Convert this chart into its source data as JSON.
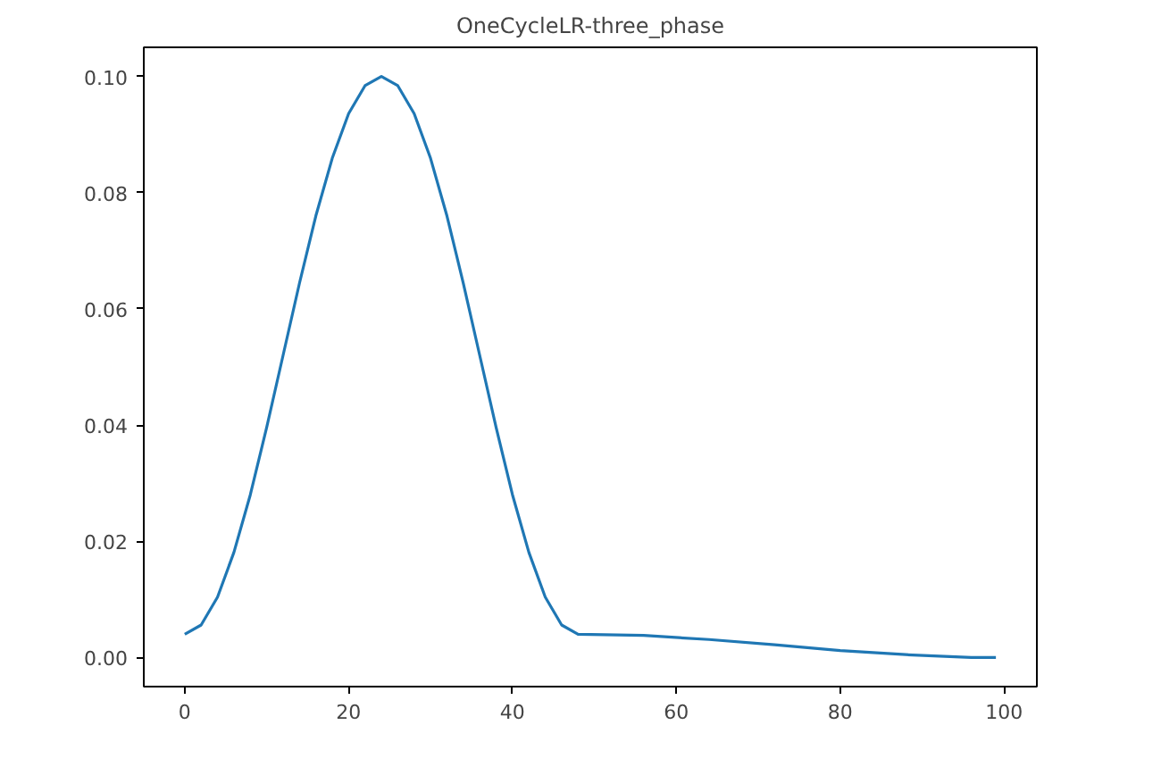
{
  "chart_data": {
    "type": "line",
    "title": "OneCycleLR-three_phase",
    "x": [
      0,
      2,
      4,
      6,
      8,
      10,
      12,
      14,
      16,
      18,
      20,
      22,
      24,
      26,
      28,
      30,
      32,
      34,
      36,
      38,
      40,
      42,
      44,
      46,
      48,
      56,
      64,
      72,
      80,
      88,
      96,
      99
    ],
    "series": [
      {
        "color": "#1f77b4",
        "values": [
          0.004,
          0.0056,
          0.0104,
          0.0181,
          0.028,
          0.0396,
          0.052,
          0.0644,
          0.076,
          0.0859,
          0.0936,
          0.0984,
          0.1,
          0.0984,
          0.0936,
          0.0859,
          0.076,
          0.0644,
          0.052,
          0.0396,
          0.028,
          0.0181,
          0.0104,
          0.0056,
          0.004,
          0.0038,
          0.0031,
          0.0022,
          0.0012,
          0.0005,
          0.0,
          0.0
        ]
      }
    ],
    "xlim": [
      -5,
      104
    ],
    "ylim": [
      -0.005,
      0.105
    ],
    "xticks": [
      0,
      20,
      40,
      60,
      80,
      100
    ],
    "yticks": [
      {
        "value": 0,
        "label": "0.00"
      },
      {
        "value": 0.02,
        "label": "0.02"
      },
      {
        "value": 0.04,
        "label": "0.04"
      },
      {
        "value": 0.06,
        "label": "0.06"
      },
      {
        "value": 0.08,
        "label": "0.08"
      },
      {
        "value": 0.1,
        "label": "0.10"
      }
    ],
    "line_style": "solid"
  }
}
